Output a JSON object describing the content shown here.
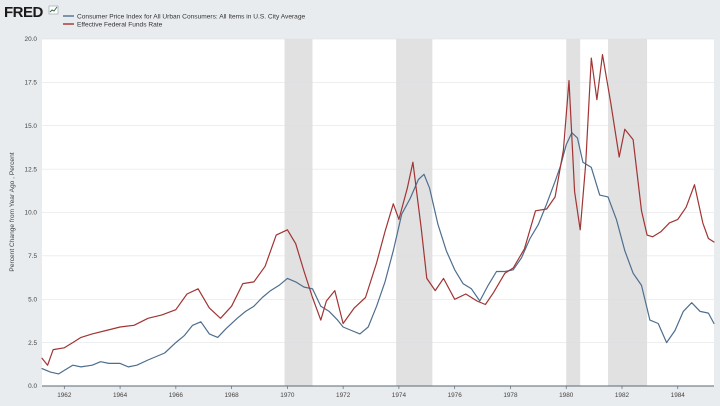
{
  "header": {
    "logo": "FRED"
  },
  "colors": {
    "background": "#e9ecef",
    "plot": "#ffffff",
    "grid": "#d9dde2",
    "recession": "#e1e1e1",
    "series_cpi": "#4e6e8e",
    "series_ffr": "#a13434"
  },
  "chart_data": {
    "type": "line",
    "title": "",
    "xlabel": "",
    "ylabel": "Percent Change from Year Ago , Percent",
    "xlim": [
      1961.2,
      1985.3
    ],
    "ylim": [
      0,
      20
    ],
    "x_ticks": [
      1962,
      1964,
      1966,
      1968,
      1970,
      1972,
      1974,
      1976,
      1978,
      1980,
      1982,
      1984
    ],
    "x_tick_labels": [
      "1962",
      "1964",
      "1966",
      "1968",
      "1970",
      "1972",
      "1974",
      "1976",
      "1978",
      "1980",
      "1982",
      "1984"
    ],
    "y_ticks": [
      0,
      2.5,
      5,
      7.5,
      10,
      12.5,
      15,
      17.5,
      20
    ],
    "y_tick_labels": [
      "0.0",
      "2.5",
      "5.0",
      "7.5",
      "10.0",
      "12.5",
      "15.0",
      "17.5",
      "20.0"
    ],
    "grid": true,
    "legend_position": "top-left",
    "recessions": [
      [
        1969.9,
        1970.9
      ],
      [
        1973.9,
        1975.2
      ],
      [
        1980.0,
        1980.5
      ],
      [
        1981.5,
        1982.9
      ]
    ],
    "series": [
      {
        "name": "Consumer Price Index for All Urban Consumers: All Items in U.S. City Average",
        "key": "cpi",
        "x": [
          1961.2,
          1961.5,
          1961.8,
          1962.0,
          1962.3,
          1962.6,
          1963.0,
          1963.3,
          1963.6,
          1964.0,
          1964.3,
          1964.6,
          1965.0,
          1965.3,
          1965.6,
          1966.0,
          1966.3,
          1966.6,
          1966.9,
          1967.2,
          1967.5,
          1967.8,
          1968.2,
          1968.5,
          1968.8,
          1969.1,
          1969.4,
          1969.7,
          1970.0,
          1970.3,
          1970.6,
          1970.9,
          1971.2,
          1971.5,
          1971.8,
          1972.0,
          1972.3,
          1972.6,
          1972.9,
          1973.2,
          1973.5,
          1973.8,
          1974.1,
          1974.4,
          1974.7,
          1974.9,
          1975.1,
          1975.4,
          1975.7,
          1976.0,
          1976.3,
          1976.6,
          1976.9,
          1977.2,
          1977.5,
          1977.8,
          1978.1,
          1978.4,
          1978.7,
          1979.0,
          1979.3,
          1979.6,
          1979.8,
          1980.0,
          1980.2,
          1980.4,
          1980.6,
          1980.9,
          1981.2,
          1981.5,
          1981.8,
          1982.1,
          1982.4,
          1982.7,
          1983.0,
          1983.3,
          1983.6,
          1983.9,
          1984.2,
          1984.5,
          1984.8,
          1985.1,
          1985.3
        ],
        "values": [
          1.0,
          0.8,
          0.7,
          0.9,
          1.2,
          1.1,
          1.2,
          1.4,
          1.3,
          1.3,
          1.1,
          1.2,
          1.5,
          1.7,
          1.9,
          2.5,
          2.9,
          3.5,
          3.7,
          3.0,
          2.8,
          3.3,
          3.9,
          4.3,
          4.6,
          5.1,
          5.5,
          5.8,
          6.2,
          6.0,
          5.7,
          5.6,
          4.6,
          4.3,
          3.8,
          3.4,
          3.2,
          3.0,
          3.4,
          4.6,
          6.0,
          7.8,
          9.9,
          10.8,
          11.9,
          12.2,
          11.4,
          9.3,
          7.8,
          6.7,
          5.9,
          5.6,
          4.9,
          5.8,
          6.6,
          6.6,
          6.7,
          7.4,
          8.5,
          9.3,
          10.5,
          11.8,
          12.7,
          13.9,
          14.6,
          14.3,
          12.9,
          12.6,
          11.0,
          10.9,
          9.6,
          7.8,
          6.5,
          5.8,
          3.8,
          3.6,
          2.5,
          3.2,
          4.3,
          4.8,
          4.3,
          4.2,
          3.6
        ]
      },
      {
        "name": "Effective Federal Funds Rate",
        "key": "ffr",
        "x": [
          1961.2,
          1961.4,
          1961.6,
          1962.0,
          1962.3,
          1962.6,
          1963.0,
          1963.5,
          1964.0,
          1964.5,
          1965.0,
          1965.5,
          1966.0,
          1966.4,
          1966.8,
          1967.2,
          1967.6,
          1968.0,
          1968.4,
          1968.8,
          1969.2,
          1969.6,
          1970.0,
          1970.3,
          1970.6,
          1970.9,
          1971.2,
          1971.4,
          1971.7,
          1972.0,
          1972.4,
          1972.8,
          1973.2,
          1973.5,
          1973.8,
          1974.0,
          1974.3,
          1974.5,
          1974.8,
          1975.0,
          1975.3,
          1975.6,
          1976.0,
          1976.4,
          1976.8,
          1977.1,
          1977.4,
          1977.8,
          1978.1,
          1978.5,
          1978.9,
          1979.3,
          1979.6,
          1979.9,
          1980.1,
          1980.3,
          1980.5,
          1980.7,
          1980.9,
          1981.1,
          1981.3,
          1981.6,
          1981.9,
          1982.1,
          1982.4,
          1982.7,
          1982.9,
          1983.1,
          1983.4,
          1983.7,
          1984.0,
          1984.3,
          1984.6,
          1984.9,
          1985.1,
          1985.3
        ],
        "values": [
          1.6,
          1.2,
          2.1,
          2.2,
          2.5,
          2.8,
          3.0,
          3.2,
          3.4,
          3.5,
          3.9,
          4.1,
          4.4,
          5.3,
          5.6,
          4.5,
          3.9,
          4.6,
          5.9,
          6.0,
          6.9,
          8.7,
          9.0,
          8.2,
          6.6,
          5.1,
          3.8,
          4.9,
          5.5,
          3.6,
          4.5,
          5.1,
          7.1,
          8.9,
          10.5,
          9.6,
          11.4,
          12.9,
          9.1,
          6.2,
          5.5,
          6.2,
          5.0,
          5.3,
          4.9,
          4.7,
          5.4,
          6.5,
          6.8,
          7.9,
          10.1,
          10.2,
          10.9,
          13.6,
          17.6,
          11.2,
          9.0,
          12.8,
          18.9,
          16.5,
          19.1,
          16.3,
          13.2,
          14.8,
          14.2,
          10.1,
          8.7,
          8.6,
          8.9,
          9.4,
          9.6,
          10.3,
          11.6,
          9.4,
          8.5,
          8.3
        ]
      }
    ]
  }
}
